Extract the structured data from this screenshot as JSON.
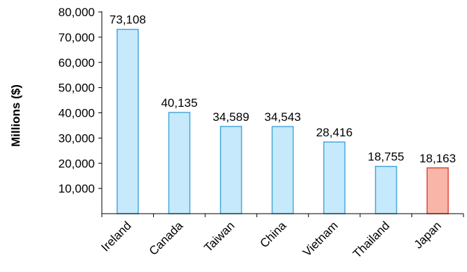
{
  "chart_data": {
    "type": "bar",
    "title": "",
    "xlabel": "",
    "ylabel": "Millions ($)",
    "ylim": [
      0,
      80000
    ],
    "yticks": [
      10000,
      20000,
      30000,
      40000,
      50000,
      60000,
      70000,
      80000
    ],
    "ytick_labels": [
      "10,000",
      "20,000",
      "30,000",
      "40,000",
      "50,000",
      "60,000",
      "70,000",
      "80,000"
    ],
    "grid": false,
    "legend": "none",
    "categories": [
      "Ireland",
      "Canada",
      "Taiwan",
      "China",
      "Vietnam",
      "Thailand",
      "Japan"
    ],
    "values": [
      73108,
      40135,
      34589,
      34543,
      28416,
      18755,
      18163
    ],
    "value_labels": [
      "73,108",
      "40,135",
      "34,589",
      "34,543",
      "28,416",
      "18,755",
      "18,163"
    ],
    "bar_fills": [
      "#c6eafb",
      "#c6eafb",
      "#c6eafb",
      "#c6eafb",
      "#c6eafb",
      "#c6eafb",
      "#f9b6a8"
    ],
    "bar_strokes": [
      "#4aa8de",
      "#4aa8de",
      "#4aa8de",
      "#4aa8de",
      "#4aa8de",
      "#4aa8de",
      "#e0483a"
    ]
  }
}
